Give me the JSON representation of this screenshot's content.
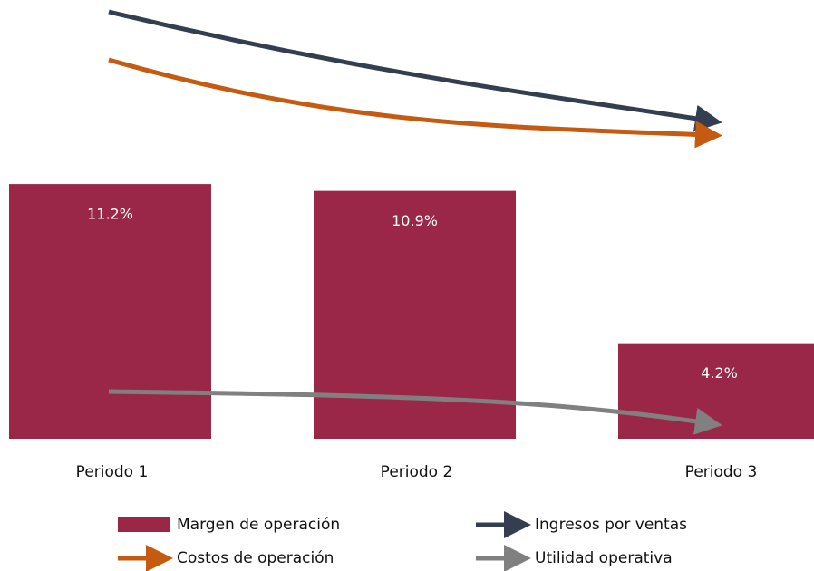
{
  "chart_data": {
    "type": "bar",
    "categories": [
      "Periodo 1",
      "Periodo 2",
      "Periodo 3"
    ],
    "series": [
      {
        "name": "Margen de operación",
        "color": "#9b2748",
        "values": [
          11.2,
          10.9,
          4.2
        ],
        "value_labels": [
          "11.2%",
          "10.9%",
          "4.2%"
        ]
      }
    ],
    "arrows": [
      {
        "name": "Ingresos por ventas",
        "color": "#333f50"
      },
      {
        "name": "Costos de operación",
        "color": "#c55a11"
      },
      {
        "name": "Utilidad operativa",
        "color": "#808080"
      }
    ]
  }
}
